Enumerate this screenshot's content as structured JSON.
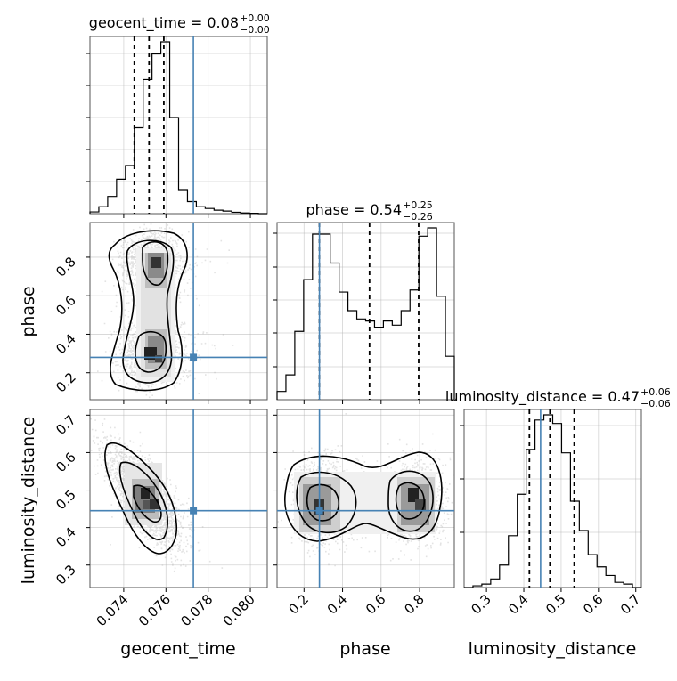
{
  "chart_data": {
    "type": "corner",
    "parameters": [
      "geocent_time",
      "phase",
      "luminosity_distance"
    ],
    "axis_labels": {
      "x": [
        "geocent_time",
        "phase",
        "luminosity_distance"
      ],
      "y": [
        "phase",
        "luminosity_distance"
      ]
    },
    "ranges": {
      "geocent_time": [
        0.0724,
        0.0808
      ],
      "phase": [
        0.06,
        0.98
      ],
      "luminosity_distance": [
        0.24,
        0.715
      ]
    },
    "ticks": {
      "geocent_time": [
        "0.074",
        "0.076",
        "0.078",
        "0.080"
      ],
      "phase": [
        "0.2",
        "0.4",
        "0.6",
        "0.8"
      ],
      "phase_y": [
        "0.2",
        "0.4",
        "0.6",
        "0.8"
      ],
      "luminosity_distance": [
        "0.3",
        "0.4",
        "0.5",
        "0.6",
        "0.7"
      ]
    },
    "titles": [
      {
        "name": "geocent_time",
        "value": "0.08",
        "plus": "+0.00",
        "minus": "−0.00"
      },
      {
        "name": "phase",
        "value": "0.54",
        "plus": "+0.25",
        "minus": "−0.26"
      },
      {
        "name": "luminosity_distance",
        "value": "0.47",
        "plus": "+0.06",
        "minus": "−0.06"
      }
    ],
    "truths": {
      "geocent_time": 0.0773,
      "phase": 0.28,
      "luminosity_distance": 0.445
    },
    "quantiles": {
      "geocent_time": [
        0.0745,
        0.0752,
        0.0759
      ],
      "phase": [
        0.28,
        0.54,
        0.795
      ],
      "luminosity_distance": [
        0.415,
        0.47,
        0.535
      ]
    },
    "histograms": {
      "geocent_time": {
        "edges_range": [
          0.0724,
          0.0808
        ],
        "counts": [
          0.01,
          0.04,
          0.1,
          0.2,
          0.28,
          0.5,
          0.78,
          0.93,
          1.0,
          0.56,
          0.14,
          0.07,
          0.04,
          0.03,
          0.02,
          0.015,
          0.008,
          0.004,
          0.002,
          0.0
        ]
      },
      "phase": {
        "edges_range": [
          0.06,
          0.98
        ],
        "counts": [
          0.04,
          0.12,
          0.33,
          0.58,
          0.8,
          0.8,
          0.66,
          0.52,
          0.43,
          0.39,
          0.38,
          0.35,
          0.38,
          0.36,
          0.43,
          0.53,
          0.79,
          0.83,
          0.5,
          0.21
        ]
      },
      "luminosity_distance": {
        "edges_range": [
          0.24,
          0.715
        ],
        "counts": [
          0.0,
          0.01,
          0.02,
          0.05,
          0.13,
          0.3,
          0.54,
          0.8,
          0.97,
          1.0,
          0.95,
          0.78,
          0.5,
          0.33,
          0.19,
          0.12,
          0.07,
          0.03,
          0.02,
          0.0
        ]
      }
    },
    "grid": true
  }
}
